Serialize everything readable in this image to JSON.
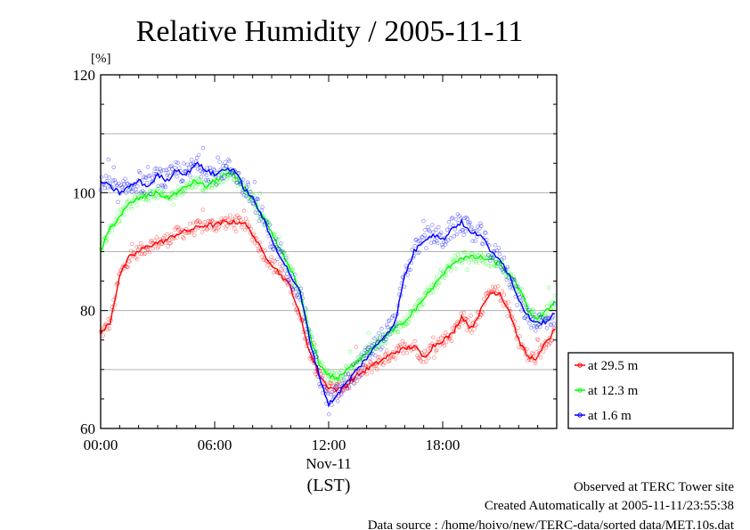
{
  "chart_data": {
    "type": "line",
    "title": "Relative Humidity / 2005-11-11",
    "y_unit": "[%]",
    "ylim": [
      60,
      120
    ],
    "yticks": [
      60,
      80,
      100,
      120
    ],
    "y_gridlines": [
      70,
      80,
      90,
      100,
      110
    ],
    "xlim": [
      "00:00",
      "24:00"
    ],
    "xticks": [
      "00:00",
      "06:00",
      "12:00",
      "18:00"
    ],
    "x_date_label": "Nov-11",
    "xlabel": "(LST)",
    "grid": true,
    "legend_placement": "right",
    "x_hours": [
      0,
      0.5,
      1,
      1.5,
      2,
      2.5,
      3,
      3.5,
      4,
      4.5,
      5,
      5.5,
      6,
      6.5,
      7,
      7.5,
      8,
      8.5,
      9,
      9.5,
      10,
      10.5,
      11,
      11.5,
      12,
      12.5,
      13,
      13.5,
      14,
      14.5,
      15,
      15.5,
      16,
      16.5,
      17,
      17.5,
      18,
      18.5,
      19,
      19.5,
      20,
      20.5,
      21,
      21.5,
      22,
      22.5,
      23,
      23.5,
      24
    ],
    "series": [
      {
        "name": "at 29.5 m",
        "color": "#ff0000",
        "values": [
          76,
          78,
          86,
          89,
          90,
          91,
          91.5,
          92,
          93,
          93.5,
          94,
          94.5,
          94.5,
          95,
          95,
          95,
          93,
          90,
          88,
          86,
          84,
          79,
          73,
          69,
          67,
          66.5,
          67.5,
          69,
          70,
          71,
          72,
          73,
          73.5,
          74,
          72,
          74,
          75,
          76,
          79,
          77,
          80,
          83,
          83,
          80,
          75,
          72,
          72,
          75,
          77
        ]
      },
      {
        "name": "at 12.3 m",
        "color": "#00ff00",
        "values": [
          90,
          94,
          96,
          98,
          99,
          99.5,
          100,
          99,
          100,
          101,
          102,
          101,
          102,
          103,
          103,
          101,
          99,
          96,
          93,
          90,
          87,
          83,
          76,
          71,
          69,
          68.5,
          70,
          71.5,
          73,
          74.5,
          75.5,
          77,
          78,
          80,
          82,
          84,
          86,
          88,
          89,
          89,
          89,
          88.5,
          88,
          86,
          84,
          80,
          78.5,
          80,
          82
        ]
      },
      {
        "name": "at 1.6 m",
        "color": "#0000ff",
        "values": [
          102,
          101,
          100,
          101,
          102,
          101,
          103,
          102,
          104,
          103,
          105,
          104,
          103,
          104,
          104,
          101,
          99,
          96,
          92,
          89,
          86,
          83,
          75,
          69,
          64,
          66,
          68,
          70,
          72,
          74,
          76,
          78,
          86,
          90,
          92,
          93,
          92,
          94,
          95,
          93,
          93,
          90,
          89,
          86,
          82,
          79,
          78,
          78,
          80
        ]
      }
    ]
  },
  "footer": {
    "line1": "Observed at TERC Tower site",
    "line2": "Created Automatically at 2005-11-11/23:55:38",
    "line3": "Data source : /home/hoivo/new/TERC-data/sorted  data/MET.10s.dat"
  }
}
